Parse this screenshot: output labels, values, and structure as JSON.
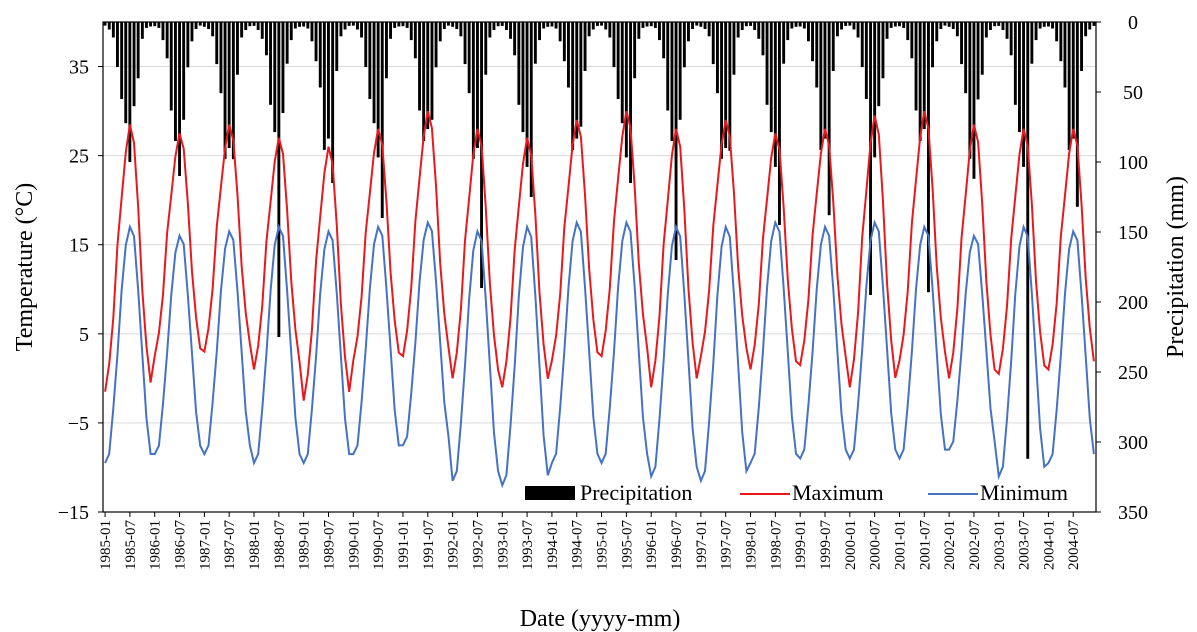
{
  "chart_data": {
    "type": "line",
    "xlabel": "Date (yyyy-mm)",
    "ylabel_left": "Temperature (°C)",
    "ylabel_right": "Precipitation (mm)",
    "y_left_range": [
      -15,
      40
    ],
    "y_left_ticks": [
      "−15",
      "−5",
      "5",
      "15",
      "25",
      "35"
    ],
    "y_right_range": [
      0,
      350
    ],
    "y_right_inverted": true,
    "y_right_ticks": [
      "0",
      "50",
      "100",
      "150",
      "200",
      "250",
      "300",
      "350"
    ],
    "x_start": "1985-01",
    "x_end": "2004-12",
    "x_tick_labels": [
      "1985-01",
      "1985-07",
      "1986-01",
      "1986-07",
      "1987-01",
      "1987-07",
      "1988-01",
      "1988-07",
      "1989-01",
      "1989-07",
      "1990-01",
      "1990-07",
      "1991-01",
      "1991-07",
      "1992-01",
      "1992-07",
      "1993-01",
      "1993-07",
      "1994-01",
      "1994-07",
      "1995-01",
      "1995-07",
      "1996-01",
      "1996-07",
      "1997-01",
      "1997-07",
      "1998-01",
      "1998-07",
      "1999-01",
      "1999-07",
      "2000-01",
      "2000-07",
      "2001-01",
      "2001-07",
      "2002-01",
      "2002-07",
      "2003-01",
      "2003-07",
      "2004-01",
      "2004-07"
    ],
    "gridlines": "horizontal",
    "legend_position": "bottom-right",
    "legend": [
      {
        "label": "Precipitation",
        "type": "bar",
        "color": "#000000"
      },
      {
        "label": "Maximum",
        "type": "line",
        "color": "#e8191c"
      },
      {
        "label": "Minimum",
        "type": "line",
        "color": "#4472c4"
      }
    ],
    "max_temp": {
      "monthly_climatology": [
        -1,
        2,
        7,
        15,
        20,
        25,
        28,
        26,
        19,
        10,
        4,
        0
      ],
      "annual_peak": [
        28.5,
        27.5,
        28.5,
        27,
        26,
        28,
        30,
        28,
        27,
        29,
        30,
        28,
        29,
        27.5,
        28,
        29.5,
        30,
        28.5,
        28,
        28
      ],
      "annual_low": [
        -1.5,
        2.5,
        3,
        1,
        -2.5,
        2,
        2.5,
        0,
        -1,
        2,
        2.5,
        -1,
        2.5,
        1,
        1.5,
        -1,
        2,
        0,
        0.5,
        1
      ]
    },
    "min_temp": {
      "monthly_climatology": [
        -9,
        -8,
        -3,
        3,
        10,
        15,
        17,
        16,
        10,
        3,
        -4,
        -8
      ],
      "annual_peak": [
        17,
        16,
        16.5,
        17,
        16.5,
        17,
        17.5,
        16.5,
        17,
        17.5,
        17.5,
        17,
        17,
        17.5,
        17,
        17.5,
        17,
        16,
        17,
        16.5
      ],
      "annual_low": [
        -9.5,
        -8.5,
        -8.5,
        -9.5,
        -9.5,
        -8.5,
        -7.5,
        -11.5,
        -12,
        -9.5,
        -9.5,
        -11,
        -11.5,
        -9.5,
        -9,
        -9,
        -9,
        -8,
        -11,
        -9.5
      ]
    },
    "precipitation": {
      "monthly_climatology": [
        3,
        5,
        12,
        28,
        55,
        85,
        90,
        65,
        35,
        12,
        5,
        3
      ],
      "spikes": [
        {
          "date": "1985-07",
          "value": 100
        },
        {
          "date": "1986-07",
          "value": 110
        },
        {
          "date": "1987-08",
          "value": 98
        },
        {
          "date": "1988-07",
          "value": 225
        },
        {
          "date": "1989-08",
          "value": 115
        },
        {
          "date": "1990-08",
          "value": 140
        },
        {
          "date": "1992-08",
          "value": 190
        },
        {
          "date": "1993-08",
          "value": 125
        },
        {
          "date": "1995-08",
          "value": 115
        },
        {
          "date": "1996-07",
          "value": 170
        },
        {
          "date": "1997-08",
          "value": 92
        },
        {
          "date": "1998-08",
          "value": 145
        },
        {
          "date": "1999-08",
          "value": 138
        },
        {
          "date": "2000-06",
          "value": 195
        },
        {
          "date": "2001-08",
          "value": 193
        },
        {
          "date": "2002-07",
          "value": 112
        },
        {
          "date": "2003-08",
          "value": 312
        },
        {
          "date": "2004-08",
          "value": 132
        }
      ]
    }
  }
}
